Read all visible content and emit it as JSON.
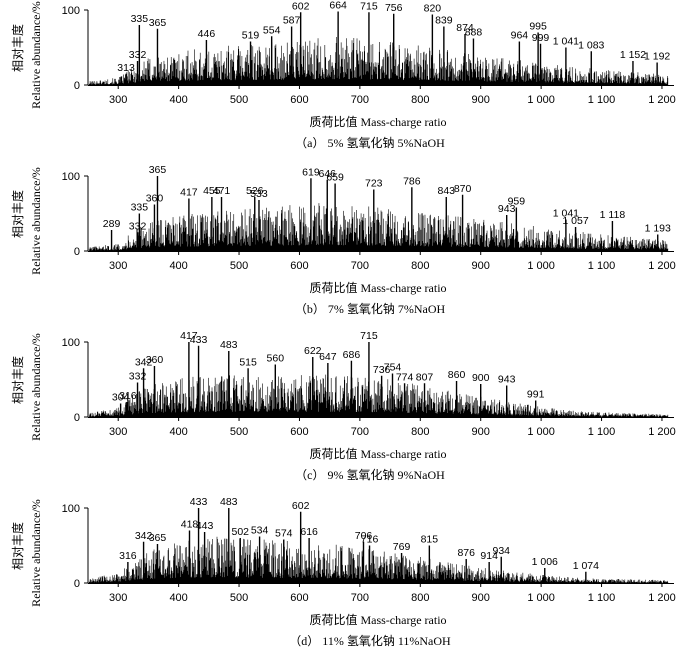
{
  "chart_data": [
    {
      "type": "bar",
      "xlabel": "质荷比值 Mass-charge ratio",
      "ylabel_cn": "相对丰度",
      "ylabel_en": "Relative abundance/%",
      "caption": "（a） 5% 氢氧化钠 5%NaOH",
      "xlim": [
        250,
        1210
      ],
      "ylim": [
        0,
        100
      ],
      "xticks": [
        "300",
        "400",
        "500",
        "600",
        "700",
        "800",
        "900",
        "1 000",
        "1 100",
        "1 200"
      ],
      "yticks": [
        "0",
        "100"
      ],
      "profile": [
        [
          250,
          4
        ],
        [
          300,
          8
        ],
        [
          330,
          22
        ],
        [
          350,
          30
        ],
        [
          400,
          36
        ],
        [
          450,
          40
        ],
        [
          500,
          44
        ],
        [
          550,
          46
        ],
        [
          600,
          48
        ],
        [
          650,
          52
        ],
        [
          700,
          50
        ],
        [
          750,
          46
        ],
        [
          800,
          42
        ],
        [
          850,
          38
        ],
        [
          900,
          32
        ],
        [
          950,
          28
        ],
        [
          1000,
          24
        ],
        [
          1050,
          20
        ],
        [
          1100,
          17
        ],
        [
          1150,
          14
        ],
        [
          1200,
          12
        ],
        [
          1210,
          10
        ]
      ],
      "peaks": [
        {
          "x": 313,
          "y": 15,
          "label": "313"
        },
        {
          "x": 332,
          "y": 32,
          "label": "332"
        },
        {
          "x": 335,
          "y": 80,
          "label": "335"
        },
        {
          "x": 365,
          "y": 75,
          "label": "365"
        },
        {
          "x": 446,
          "y": 60,
          "label": "446"
        },
        {
          "x": 519,
          "y": 58,
          "label": "519"
        },
        {
          "x": 554,
          "y": 65,
          "label": "554"
        },
        {
          "x": 587,
          "y": 78,
          "label": "587"
        },
        {
          "x": 602,
          "y": 97,
          "label": "602"
        },
        {
          "x": 664,
          "y": 98,
          "label": "664"
        },
        {
          "x": 715,
          "y": 97,
          "label": "715"
        },
        {
          "x": 756,
          "y": 95,
          "label": "756"
        },
        {
          "x": 820,
          "y": 94,
          "label": "820"
        },
        {
          "x": 839,
          "y": 78,
          "label": "839"
        },
        {
          "x": 874,
          "y": 68,
          "label": "874"
        },
        {
          "x": 888,
          "y": 62,
          "label": "888"
        },
        {
          "x": 964,
          "y": 58,
          "label": "964"
        },
        {
          "x": 995,
          "y": 70,
          "label": "995"
        },
        {
          "x": 999,
          "y": 55,
          "label": "999"
        },
        {
          "x": 1041,
          "y": 50,
          "label": "1 041"
        },
        {
          "x": 1083,
          "y": 45,
          "label": "1 083"
        },
        {
          "x": 1152,
          "y": 32,
          "label": "1 152"
        },
        {
          "x": 1192,
          "y": 30,
          "label": "1 192"
        }
      ]
    },
    {
      "type": "bar",
      "xlabel": "质荷比值 Mass-charge ratio",
      "ylabel_cn": "相对丰度",
      "ylabel_en": "Relative abundance/%",
      "caption": "（b） 7% 氢氧化钠 7%NaOH",
      "xlim": [
        250,
        1210
      ],
      "ylim": [
        0,
        100
      ],
      "xticks": [
        "300",
        "400",
        "500",
        "600",
        "700",
        "800",
        "900",
        "1 000",
        "1 100",
        "1 200"
      ],
      "yticks": [
        "0",
        "100"
      ],
      "profile": [
        [
          250,
          4
        ],
        [
          300,
          8
        ],
        [
          330,
          24
        ],
        [
          350,
          32
        ],
        [
          400,
          38
        ],
        [
          450,
          42
        ],
        [
          500,
          45
        ],
        [
          550,
          47
        ],
        [
          600,
          50
        ],
        [
          650,
          52
        ],
        [
          700,
          50
        ],
        [
          750,
          46
        ],
        [
          800,
          42
        ],
        [
          850,
          38
        ],
        [
          900,
          34
        ],
        [
          950,
          30
        ],
        [
          1000,
          26
        ],
        [
          1050,
          22
        ],
        [
          1100,
          18
        ],
        [
          1150,
          15
        ],
        [
          1200,
          12
        ],
        [
          1210,
          10
        ]
      ],
      "peaks": [
        {
          "x": 289,
          "y": 28,
          "label": "289"
        },
        {
          "x": 332,
          "y": 25,
          "label": "332"
        },
        {
          "x": 335,
          "y": 50,
          "label": "335"
        },
        {
          "x": 360,
          "y": 62,
          "label": "360"
        },
        {
          "x": 365,
          "y": 100,
          "label": "365"
        },
        {
          "x": 417,
          "y": 70,
          "label": "417"
        },
        {
          "x": 455,
          "y": 72,
          "label": "455"
        },
        {
          "x": 471,
          "y": 72,
          "label": "471"
        },
        {
          "x": 526,
          "y": 72,
          "label": "526"
        },
        {
          "x": 533,
          "y": 68,
          "label": "533"
        },
        {
          "x": 619,
          "y": 97,
          "label": "619"
        },
        {
          "x": 646,
          "y": 95,
          "label": "646"
        },
        {
          "x": 659,
          "y": 90,
          "label": "659"
        },
        {
          "x": 723,
          "y": 82,
          "label": "723"
        },
        {
          "x": 786,
          "y": 85,
          "label": "786"
        },
        {
          "x": 843,
          "y": 72,
          "label": "843"
        },
        {
          "x": 870,
          "y": 75,
          "label": "870"
        },
        {
          "x": 943,
          "y": 48,
          "label": "943"
        },
        {
          "x": 959,
          "y": 58,
          "label": "959"
        },
        {
          "x": 1041,
          "y": 42,
          "label": "1 041"
        },
        {
          "x": 1057,
          "y": 32,
          "label": "1 057"
        },
        {
          "x": 1118,
          "y": 40,
          "label": "1 118"
        },
        {
          "x": 1193,
          "y": 22,
          "label": "1 193"
        }
      ]
    },
    {
      "type": "bar",
      "xlabel": "质荷比值 Mass-charge ratio",
      "ylabel_cn": "相对丰度",
      "ylabel_en": "Relative abundance/%",
      "caption": "（c） 9% 氢氧化钠 9%NaOH",
      "xlim": [
        250,
        1210
      ],
      "ylim": [
        0,
        100
      ],
      "xticks": [
        "300",
        "400",
        "500",
        "600",
        "700",
        "800",
        "900",
        "1 000",
        "1 100",
        "1 200"
      ],
      "yticks": [
        "0",
        "100"
      ],
      "profile": [
        [
          250,
          4
        ],
        [
          300,
          10
        ],
        [
          330,
          26
        ],
        [
          360,
          36
        ],
        [
          400,
          42
        ],
        [
          450,
          44
        ],
        [
          500,
          45
        ],
        [
          550,
          46
        ],
        [
          600,
          46
        ],
        [
          650,
          46
        ],
        [
          700,
          44
        ],
        [
          750,
          40
        ],
        [
          800,
          34
        ],
        [
          850,
          28
        ],
        [
          900,
          22
        ],
        [
          950,
          16
        ],
        [
          1000,
          11
        ],
        [
          1050,
          7
        ],
        [
          1100,
          5
        ],
        [
          1150,
          4
        ],
        [
          1200,
          3
        ],
        [
          1210,
          3
        ]
      ],
      "peaks": [
        {
          "x": 304,
          "y": 18,
          "label": "304"
        },
        {
          "x": 316,
          "y": 20,
          "label": "316"
        },
        {
          "x": 332,
          "y": 46,
          "label": "332"
        },
        {
          "x": 342,
          "y": 65,
          "label": "342"
        },
        {
          "x": 360,
          "y": 68,
          "label": "360"
        },
        {
          "x": 417,
          "y": 100,
          "label": "417"
        },
        {
          "x": 433,
          "y": 95,
          "label": "433"
        },
        {
          "x": 483,
          "y": 88,
          "label": "483"
        },
        {
          "x": 515,
          "y": 65,
          "label": "515"
        },
        {
          "x": 560,
          "y": 70,
          "label": "560"
        },
        {
          "x": 622,
          "y": 80,
          "label": "622"
        },
        {
          "x": 647,
          "y": 72,
          "label": "647"
        },
        {
          "x": 686,
          "y": 75,
          "label": "686"
        },
        {
          "x": 715,
          "y": 100,
          "label": "715"
        },
        {
          "x": 736,
          "y": 55,
          "label": "736"
        },
        {
          "x": 754,
          "y": 58,
          "label": "754"
        },
        {
          "x": 774,
          "y": 45,
          "label": "774"
        },
        {
          "x": 807,
          "y": 45,
          "label": "807"
        },
        {
          "x": 860,
          "y": 48,
          "label": "860"
        },
        {
          "x": 900,
          "y": 44,
          "label": "900"
        },
        {
          "x": 943,
          "y": 42,
          "label": "943"
        },
        {
          "x": 991,
          "y": 22,
          "label": "991"
        }
      ]
    },
    {
      "type": "bar",
      "xlabel": "质荷比值 Mass-charge ratio",
      "ylabel_cn": "相对丰度",
      "ylabel_en": "Relative abundance/%",
      "caption": "（d） 11% 氢氧化钠 11%NaOH",
      "xlim": [
        250,
        1210
      ],
      "ylim": [
        0,
        100
      ],
      "xticks": [
        "300",
        "400",
        "500",
        "600",
        "700",
        "800",
        "900",
        "1 000",
        "1 100",
        "1 200"
      ],
      "yticks": [
        "0",
        "100"
      ],
      "profile": [
        [
          250,
          4
        ],
        [
          300,
          12
        ],
        [
          330,
          26
        ],
        [
          360,
          38
        ],
        [
          400,
          46
        ],
        [
          450,
          50
        ],
        [
          500,
          48
        ],
        [
          550,
          46
        ],
        [
          600,
          44
        ],
        [
          650,
          42
        ],
        [
          700,
          38
        ],
        [
          750,
          33
        ],
        [
          800,
          28
        ],
        [
          850,
          22
        ],
        [
          900,
          17
        ],
        [
          950,
          13
        ],
        [
          1000,
          9
        ],
        [
          1050,
          6
        ],
        [
          1100,
          5
        ],
        [
          1150,
          4
        ],
        [
          1200,
          3
        ],
        [
          1210,
          3
        ]
      ],
      "peaks": [
        {
          "x": 316,
          "y": 28,
          "label": "316"
        },
        {
          "x": 342,
          "y": 55,
          "label": "342"
        },
        {
          "x": 365,
          "y": 52,
          "label": "365"
        },
        {
          "x": 418,
          "y": 70,
          "label": "418"
        },
        {
          "x": 433,
          "y": 100,
          "label": "433"
        },
        {
          "x": 443,
          "y": 68,
          "label": "443"
        },
        {
          "x": 483,
          "y": 100,
          "label": "483"
        },
        {
          "x": 502,
          "y": 60,
          "label": "502"
        },
        {
          "x": 534,
          "y": 62,
          "label": "534"
        },
        {
          "x": 574,
          "y": 58,
          "label": "574"
        },
        {
          "x": 602,
          "y": 95,
          "label": "602"
        },
        {
          "x": 616,
          "y": 60,
          "label": "616"
        },
        {
          "x": 706,
          "y": 55,
          "label": "706"
        },
        {
          "x": 716,
          "y": 50,
          "label": "716"
        },
        {
          "x": 769,
          "y": 40,
          "label": "769"
        },
        {
          "x": 815,
          "y": 50,
          "label": "815"
        },
        {
          "x": 876,
          "y": 32,
          "label": "876"
        },
        {
          "x": 914,
          "y": 28,
          "label": "914"
        },
        {
          "x": 934,
          "y": 35,
          "label": "934"
        },
        {
          "x": 1006,
          "y": 20,
          "label": "1 006"
        },
        {
          "x": 1074,
          "y": 15,
          "label": "1 074"
        }
      ]
    }
  ]
}
